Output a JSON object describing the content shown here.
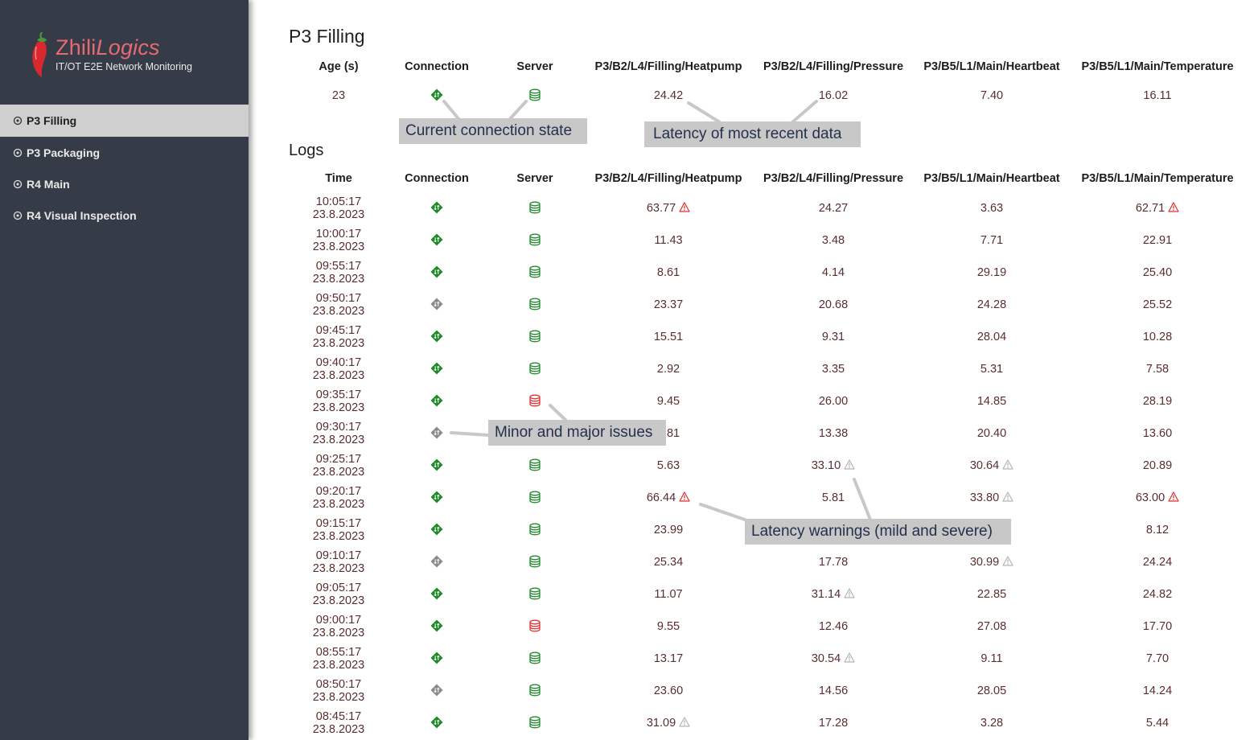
{
  "brand": {
    "name_plain": "Zhili",
    "name_italic": "Logics",
    "subtitle": "IT/OT E2E Network Monitoring"
  },
  "sidebar": {
    "items": [
      {
        "label": "P3 Filling",
        "active": true
      },
      {
        "label": "P3 Packaging",
        "active": false
      },
      {
        "label": "R4 Main",
        "active": false
      },
      {
        "label": "R4 Visual Inspection",
        "active": false
      }
    ]
  },
  "page_title": "P3 Filling",
  "current": {
    "headers": [
      "Age (s)",
      "Connection",
      "Server",
      "P3/B2/L4/Filling/Heatpump",
      "P3/B2/L4/Filling/Pressure",
      "P3/B5/L1/Main/Heartbeat",
      "P3/B5/L1/Main/Temperature"
    ],
    "age": "23",
    "connection": "ok",
    "server": "ok",
    "values": [
      "24.42",
      "16.02",
      "7.40",
      "16.11"
    ]
  },
  "logs_title": "Logs",
  "logs": {
    "headers": [
      "Time",
      "Connection",
      "Server",
      "P3/B2/L4/Filling/Heatpump",
      "P3/B2/L4/Filling/Pressure",
      "P3/B5/L1/Main/Heartbeat",
      "P3/B5/L1/Main/Temperature"
    ],
    "rows": [
      {
        "time": "10:05:17",
        "date": "23.8.2023",
        "connection": "ok",
        "server": "ok",
        "values": [
          {
            "v": "63.77",
            "w": "severe"
          },
          {
            "v": "24.27",
            "w": ""
          },
          {
            "v": "3.63",
            "w": ""
          },
          {
            "v": "62.71",
            "w": "severe"
          }
        ]
      },
      {
        "time": "10:00:17",
        "date": "23.8.2023",
        "connection": "ok",
        "server": "ok",
        "values": [
          {
            "v": "11.43",
            "w": ""
          },
          {
            "v": "3.48",
            "w": ""
          },
          {
            "v": "7.71",
            "w": ""
          },
          {
            "v": "22.91",
            "w": ""
          }
        ]
      },
      {
        "time": "09:55:17",
        "date": "23.8.2023",
        "connection": "ok",
        "server": "ok",
        "values": [
          {
            "v": "8.61",
            "w": ""
          },
          {
            "v": "4.14",
            "w": ""
          },
          {
            "v": "29.19",
            "w": ""
          },
          {
            "v": "25.40",
            "w": ""
          }
        ]
      },
      {
        "time": "09:50:17",
        "date": "23.8.2023",
        "connection": "minor",
        "server": "ok",
        "values": [
          {
            "v": "23.37",
            "w": ""
          },
          {
            "v": "20.68",
            "w": ""
          },
          {
            "v": "24.28",
            "w": ""
          },
          {
            "v": "25.52",
            "w": ""
          }
        ]
      },
      {
        "time": "09:45:17",
        "date": "23.8.2023",
        "connection": "ok",
        "server": "ok",
        "values": [
          {
            "v": "15.51",
            "w": ""
          },
          {
            "v": "9.31",
            "w": ""
          },
          {
            "v": "28.04",
            "w": ""
          },
          {
            "v": "10.28",
            "w": ""
          }
        ]
      },
      {
        "time": "09:40:17",
        "date": "23.8.2023",
        "connection": "ok",
        "server": "ok",
        "values": [
          {
            "v": "2.92",
            "w": ""
          },
          {
            "v": "3.35",
            "w": ""
          },
          {
            "v": "5.31",
            "w": ""
          },
          {
            "v": "7.58",
            "w": ""
          }
        ]
      },
      {
        "time": "09:35:17",
        "date": "23.8.2023",
        "connection": "ok",
        "server": "major",
        "values": [
          {
            "v": "9.45",
            "w": ""
          },
          {
            "v": "26.00",
            "w": ""
          },
          {
            "v": "14.85",
            "w": ""
          },
          {
            "v": "28.19",
            "w": ""
          }
        ]
      },
      {
        "time": "09:30:17",
        "date": "23.8.2023",
        "connection": "minor",
        "server": "ok",
        "values": [
          {
            "v": "3.81",
            "w": ""
          },
          {
            "v": "13.38",
            "w": ""
          },
          {
            "v": "20.40",
            "w": ""
          },
          {
            "v": "13.60",
            "w": ""
          }
        ]
      },
      {
        "time": "09:25:17",
        "date": "23.8.2023",
        "connection": "ok",
        "server": "ok",
        "values": [
          {
            "v": "5.63",
            "w": ""
          },
          {
            "v": "33.10",
            "w": "mild"
          },
          {
            "v": "30.64",
            "w": "mild"
          },
          {
            "v": "20.89",
            "w": ""
          }
        ]
      },
      {
        "time": "09:20:17",
        "date": "23.8.2023",
        "connection": "ok",
        "server": "ok",
        "values": [
          {
            "v": "66.44",
            "w": "severe"
          },
          {
            "v": "5.81",
            "w": ""
          },
          {
            "v": "33.80",
            "w": "mild"
          },
          {
            "v": "63.00",
            "w": "severe"
          }
        ]
      },
      {
        "time": "09:15:17",
        "date": "23.8.2023",
        "connection": "ok",
        "server": "ok",
        "values": [
          {
            "v": "23.99",
            "w": ""
          },
          {
            "v": "",
            "w": ""
          },
          {
            "v": "",
            "w": ""
          },
          {
            "v": "8.12",
            "w": ""
          }
        ]
      },
      {
        "time": "09:10:17",
        "date": "23.8.2023",
        "connection": "minor",
        "server": "ok",
        "values": [
          {
            "v": "25.34",
            "w": ""
          },
          {
            "v": "17.78",
            "w": ""
          },
          {
            "v": "30.99",
            "w": "mild"
          },
          {
            "v": "24.24",
            "w": ""
          }
        ]
      },
      {
        "time": "09:05:17",
        "date": "23.8.2023",
        "connection": "ok",
        "server": "ok",
        "values": [
          {
            "v": "11.07",
            "w": ""
          },
          {
            "v": "31.14",
            "w": "mild"
          },
          {
            "v": "22.85",
            "w": ""
          },
          {
            "v": "24.82",
            "w": ""
          }
        ]
      },
      {
        "time": "09:00:17",
        "date": "23.8.2023",
        "connection": "ok",
        "server": "major",
        "values": [
          {
            "v": "9.55",
            "w": ""
          },
          {
            "v": "12.46",
            "w": ""
          },
          {
            "v": "27.08",
            "w": ""
          },
          {
            "v": "17.70",
            "w": ""
          }
        ]
      },
      {
        "time": "08:55:17",
        "date": "23.8.2023",
        "connection": "ok",
        "server": "ok",
        "values": [
          {
            "v": "13.17",
            "w": ""
          },
          {
            "v": "30.54",
            "w": "mild"
          },
          {
            "v": "9.11",
            "w": ""
          },
          {
            "v": "7.70",
            "w": ""
          }
        ]
      },
      {
        "time": "08:50:17",
        "date": "23.8.2023",
        "connection": "minor",
        "server": "ok",
        "values": [
          {
            "v": "23.60",
            "w": ""
          },
          {
            "v": "14.56",
            "w": ""
          },
          {
            "v": "28.05",
            "w": ""
          },
          {
            "v": "14.24",
            "w": ""
          }
        ]
      },
      {
        "time": "08:45:17",
        "date": "23.8.2023",
        "connection": "ok",
        "server": "ok",
        "values": [
          {
            "v": "31.09",
            "w": "mild"
          },
          {
            "v": "17.28",
            "w": ""
          },
          {
            "v": "3.28",
            "w": ""
          },
          {
            "v": "5.44",
            "w": ""
          }
        ]
      }
    ]
  },
  "callouts": {
    "connection_state": "Current connection state",
    "latency_recent": "Latency of most recent data",
    "issues": "Minor and major issues",
    "latency_warnings": "Latency warnings (mild and severe)"
  },
  "colors": {
    "sidebar_bg": "#363c47",
    "nav_active_bg": "#cfcfcf",
    "brand": "#e56a72",
    "status_ok": "#1f8a2a",
    "status_minor": "#8a8a8a",
    "status_major": "#e03030",
    "warn_mild": "#b5b5b5",
    "warn_severe": "#e03030",
    "callout_bg": "#c8c8c8",
    "value_text": "#5a2e2e"
  }
}
